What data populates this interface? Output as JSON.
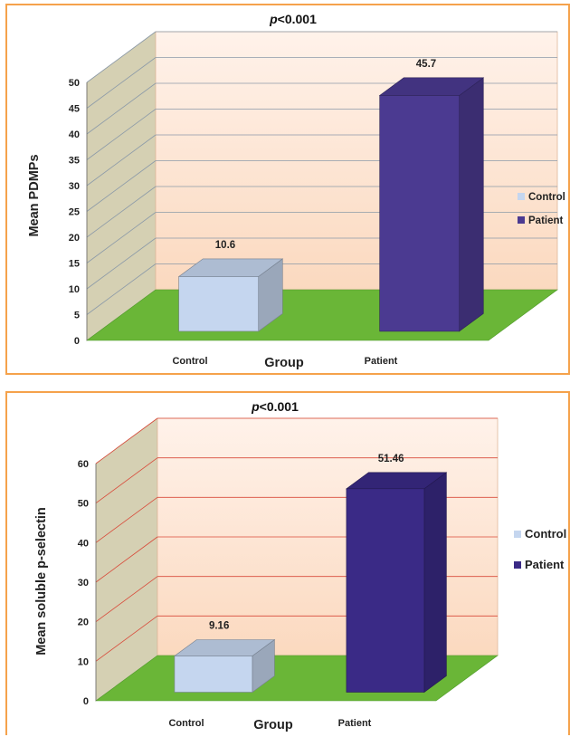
{
  "chart_data": [
    {
      "type": "bar",
      "title": "p<0.001",
      "title_prefix": "p",
      "title_rest": "<0.001",
      "xlabel": "Group",
      "ylabel": "Mean PDMPs",
      "categories": [
        "Control",
        "Patient"
      ],
      "series": [
        {
          "name": "Control",
          "values": [
            10.6,
            null
          ],
          "color": "#c5d6ef"
        },
        {
          "name": "Patient",
          "values": [
            null,
            45.7
          ],
          "color": "#4b3a91"
        }
      ],
      "data_labels": [
        "10.6",
        "45.7"
      ],
      "ylim": [
        0,
        50
      ],
      "yticks": [
        0,
        5,
        10,
        15,
        20,
        25,
        30,
        35,
        40,
        45,
        50
      ],
      "legend_position": "right",
      "grid": true,
      "floor_color": "#6ab637",
      "wall_color": "#fbd9bf",
      "gridline_color": "#8c9aa8"
    },
    {
      "type": "bar",
      "title": "p<0.001",
      "title_prefix": "p",
      "title_rest": "<0.001",
      "xlabel": "Group",
      "ylabel": "Mean soluble p-selectin",
      "categories": [
        "Control",
        "Patient"
      ],
      "series": [
        {
          "name": "Control",
          "values": [
            9.16,
            null
          ],
          "color": "#c5d6ef"
        },
        {
          "name": "Patient",
          "values": [
            null,
            51.46
          ],
          "color": "#3a2a86"
        }
      ],
      "data_labels": [
        "9.16",
        "51.46"
      ],
      "ylim": [
        0,
        60
      ],
      "yticks": [
        0,
        10,
        20,
        30,
        40,
        50,
        60
      ],
      "legend_position": "right",
      "grid": true,
      "floor_color": "#6ab637",
      "wall_color": "#fbd9bf",
      "gridline_color": "#d84a3a"
    }
  ]
}
